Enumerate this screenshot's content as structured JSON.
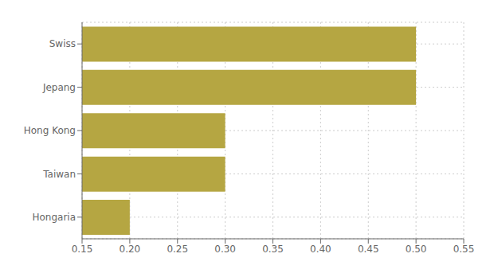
{
  "chart_data": {
    "type": "bar",
    "orientation": "horizontal",
    "categories": [
      "Hongaria",
      "Taiwan",
      "Hong Kong",
      "Jepang",
      "Swiss"
    ],
    "values": [
      0.2,
      0.3,
      0.3,
      0.5,
      0.5
    ],
    "color": "#b5a642",
    "xlim": [
      0.15,
      0.55
    ],
    "xticks": [
      0.15,
      {
        "value": 0.2,
        "label": "0.20"
      },
      0.25,
      {
        "value": 0.3,
        "label": "0.30"
      },
      0.35,
      {
        "value": 0.4,
        "label": "0.40"
      },
      0.45,
      {
        "value": 0.5,
        "label": "0.50"
      },
      0.55
    ],
    "grid": true
  }
}
